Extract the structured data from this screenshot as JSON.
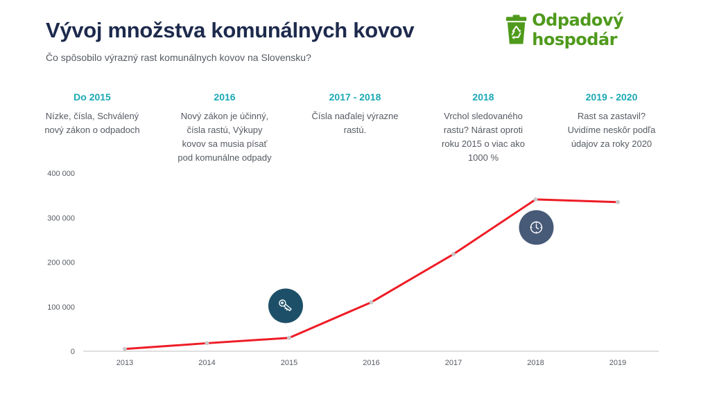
{
  "header": {
    "title": "Vývoj množstva komunálnych kovov",
    "subtitle": "Čo spôsobilo výrazný rast komunálnych kovov na Slovensku?"
  },
  "logo": {
    "text": "Odpadový hospodár",
    "icon": "recycling-bin-icon",
    "color": "#4f9a1c"
  },
  "phases": [
    {
      "title": "Do 2015",
      "lines": [
        "Nízke, čísla, Schválený",
        "nový zákon o odpadoch"
      ]
    },
    {
      "title": "2016",
      "lines": [
        "Nový zákon je účinný,",
        "čísla rastú, Výkupy",
        "kovov sa musia písať",
        "pod komunálne odpady"
      ]
    },
    {
      "title": "2017 - 2018",
      "lines": [
        "Čísla naďalej výrazne",
        "rastú."
      ]
    },
    {
      "title": "2018",
      "lines": [
        "Vrchol sledovaného",
        "rastu? Nárast oproti",
        "roku 2015 o viac ako",
        "1000 %"
      ]
    },
    {
      "title": "2019 - 2020",
      "lines": [
        "Rast sa zastavil?",
        "Uvidíme neskôr podľa",
        "údajov za roky 2020"
      ]
    }
  ],
  "markers": [
    {
      "icon": "key-icon",
      "x": "2015",
      "y": 102000,
      "color": "#1d5068"
    },
    {
      "icon": "clock-icon",
      "x": "2018",
      "y": 278000,
      "color": "#475a78"
    }
  ],
  "chart_data": {
    "type": "line",
    "categories": [
      "2013",
      "2014",
      "2015",
      "2016",
      "2017",
      "2018",
      "2019"
    ],
    "series": [
      {
        "values": [
          5000,
          18000,
          30000,
          110000,
          218000,
          341000,
          335000
        ],
        "color": "#ee1c25"
      }
    ],
    "ylim": [
      0,
      400000
    ],
    "yticks": [
      0,
      100000,
      200000,
      300000,
      400000
    ],
    "ytick_labels": [
      "0",
      "100 000",
      "200 000",
      "300 000",
      "400 000"
    ],
    "grid": false
  }
}
